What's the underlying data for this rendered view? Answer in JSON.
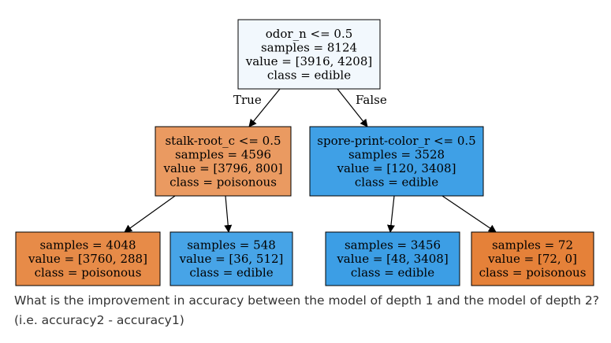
{
  "tree": {
    "nodes": [
      {
        "id": "root",
        "lines": [
          "odor_n <= 0.5",
          "samples = 8124",
          "value = [3916, 4208]",
          "class = edible"
        ],
        "fill": "#f2f8fd"
      },
      {
        "id": "left",
        "lines": [
          "stalk-root_c <= 0.5",
          "samples = 4596",
          "value = [3796, 800]",
          "class = poisonous"
        ],
        "fill": "#ea9a61"
      },
      {
        "id": "right",
        "lines": [
          "spore-print-color_r <= 0.5",
          "samples = 3528",
          "value = [120, 3408]",
          "class = edible"
        ],
        "fill": "#3fa0e6"
      },
      {
        "id": "leaf1",
        "lines": [
          "samples = 4048",
          "value = [3760, 288]",
          "class = poisonous"
        ],
        "fill": "#e78b48"
      },
      {
        "id": "leaf2",
        "lines": [
          "samples = 548",
          "value = [36, 512]",
          "class = edible"
        ],
        "fill": "#47a4e7"
      },
      {
        "id": "leaf3",
        "lines": [
          "samples = 3456",
          "value = [48, 3408]",
          "class = edible"
        ],
        "fill": "#3c9ee5"
      },
      {
        "id": "leaf4",
        "lines": [
          "samples = 72",
          "value = [72, 0]",
          "class = poisonous"
        ],
        "fill": "#e58139"
      }
    ],
    "edges": [
      {
        "from": "root",
        "to": "left",
        "label": "True"
      },
      {
        "from": "root",
        "to": "right",
        "label": "False"
      },
      {
        "from": "left",
        "to": "leaf1",
        "label": ""
      },
      {
        "from": "left",
        "to": "leaf2",
        "label": ""
      },
      {
        "from": "right",
        "to": "leaf3",
        "label": ""
      },
      {
        "from": "right",
        "to": "leaf4",
        "label": ""
      }
    ]
  },
  "question": "What is the improvement in accuracy between the model of depth 1 and the model of depth 2? (i.e. accuracy2 - accuracy1)"
}
